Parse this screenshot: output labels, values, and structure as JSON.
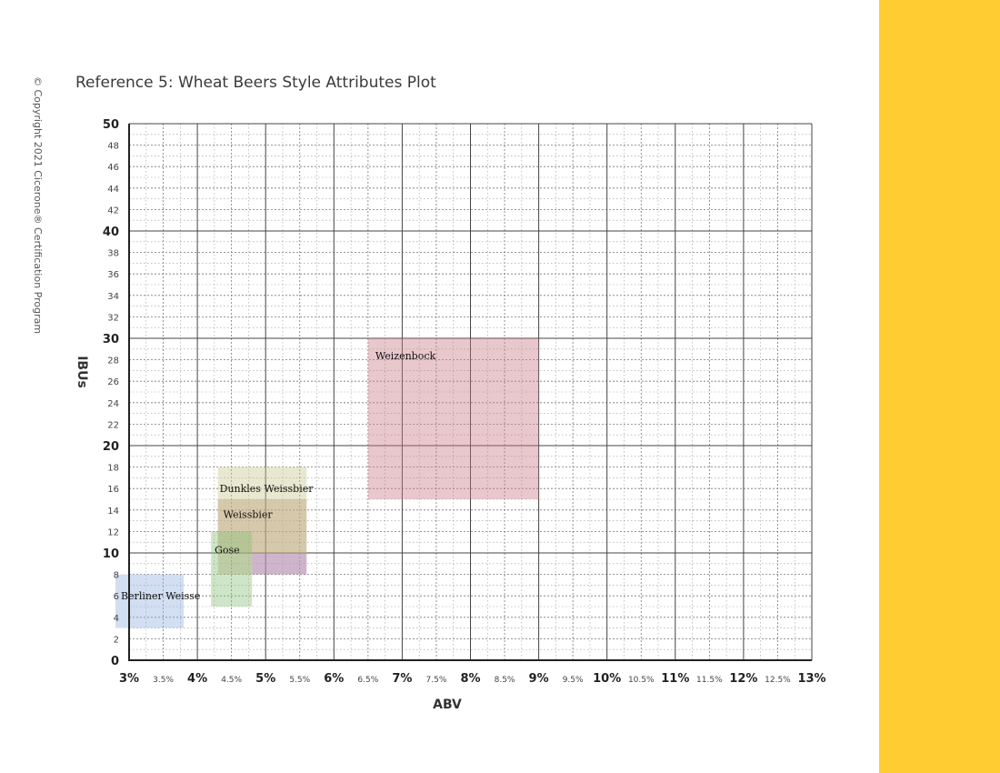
{
  "copyright": "© Copyright 2021 Cicerone® Certification Program",
  "chart_data": {
    "type": "scatter",
    "title": "Reference 5: Wheat Beers Style Attributes Plot",
    "xlabel": "ABV",
    "ylabel": "IBUs",
    "xlim": [
      3,
      13
    ],
    "ylim": [
      0,
      50
    ],
    "grid": true,
    "x_ticks": [
      {
        "value": 3,
        "label": "3%",
        "major": true
      },
      {
        "value": 3.5,
        "label": "3.5%",
        "major": false
      },
      {
        "value": 4,
        "label": "4%",
        "major": true
      },
      {
        "value": 4.5,
        "label": "4.5%",
        "major": false
      },
      {
        "value": 5,
        "label": "5%",
        "major": true
      },
      {
        "value": 5.5,
        "label": "5.5%",
        "major": false
      },
      {
        "value": 6,
        "label": "6%",
        "major": true
      },
      {
        "value": 6.5,
        "label": "6.5%",
        "major": false
      },
      {
        "value": 7,
        "label": "7%",
        "major": true
      },
      {
        "value": 7.5,
        "label": "7.5%",
        "major": false
      },
      {
        "value": 8,
        "label": "8%",
        "major": true
      },
      {
        "value": 8.5,
        "label": "8.5%",
        "major": false
      },
      {
        "value": 9,
        "label": "9%",
        "major": true
      },
      {
        "value": 9.5,
        "label": "9.5%",
        "major": false
      },
      {
        "value": 10,
        "label": "10%",
        "major": true
      },
      {
        "value": 10.5,
        "label": "10.5%",
        "major": false
      },
      {
        "value": 11,
        "label": "11%",
        "major": true
      },
      {
        "value": 11.5,
        "label": "11.5%",
        "major": false
      },
      {
        "value": 12,
        "label": "12%",
        "major": true
      },
      {
        "value": 12.5,
        "label": "12.5%",
        "major": false
      },
      {
        "value": 13,
        "label": "13%",
        "major": true
      }
    ],
    "y_ticks": [
      {
        "value": 0,
        "label": "0",
        "major": true
      },
      {
        "value": 2,
        "label": "2",
        "major": false
      },
      {
        "value": 4,
        "label": "4",
        "major": false
      },
      {
        "value": 6,
        "label": "6",
        "major": false
      },
      {
        "value": 8,
        "label": "8",
        "major": false
      },
      {
        "value": 10,
        "label": "10",
        "major": true
      },
      {
        "value": 12,
        "label": "12",
        "major": false
      },
      {
        "value": 14,
        "label": "14",
        "major": false
      },
      {
        "value": 16,
        "label": "16",
        "major": false
      },
      {
        "value": 18,
        "label": "18",
        "major": false
      },
      {
        "value": 20,
        "label": "20",
        "major": true
      },
      {
        "value": 22,
        "label": "22",
        "major": false
      },
      {
        "value": 24,
        "label": "24",
        "major": false
      },
      {
        "value": 26,
        "label": "26",
        "major": false
      },
      {
        "value": 28,
        "label": "28",
        "major": false
      },
      {
        "value": 30,
        "label": "30",
        "major": true
      },
      {
        "value": 32,
        "label": "32",
        "major": false
      },
      {
        "value": 34,
        "label": "34",
        "major": false
      },
      {
        "value": 36,
        "label": "36",
        "major": false
      },
      {
        "value": 38,
        "label": "38",
        "major": false
      },
      {
        "value": 40,
        "label": "40",
        "major": true
      },
      {
        "value": 42,
        "label": "42",
        "major": false
      },
      {
        "value": 44,
        "label": "44",
        "major": false
      },
      {
        "value": 46,
        "label": "46",
        "major": false
      },
      {
        "value": 48,
        "label": "48",
        "major": false
      },
      {
        "value": 50,
        "label": "50",
        "major": true
      }
    ],
    "regions": [
      {
        "name": "Weizenbock",
        "abv": [
          6.5,
          9.0
        ],
        "ibu": [
          15,
          30
        ],
        "color": "#c87a88"
      },
      {
        "name": "Dunkles Weissbier",
        "abv": [
          4.3,
          5.6
        ],
        "ibu": [
          10,
          18
        ],
        "color": "#c9c98e"
      },
      {
        "name": "Weissbier",
        "abv": [
          4.3,
          5.6
        ],
        "ibu": [
          8,
          15
        ],
        "color": "#b99a78"
      },
      {
        "name": "Gose",
        "abv": [
          4.2,
          4.8
        ],
        "ibu": [
          5,
          12
        ],
        "color": "#8cc07a"
      },
      {
        "name": "",
        "abv": [
          4.8,
          5.6
        ],
        "ibu": [
          8,
          10
        ],
        "color": "#b48ad2"
      },
      {
        "name": "Berliner Weisse",
        "abv": [
          2.8,
          3.8
        ],
        "ibu": [
          3,
          8
        ],
        "color": "#93b1de"
      }
    ]
  }
}
